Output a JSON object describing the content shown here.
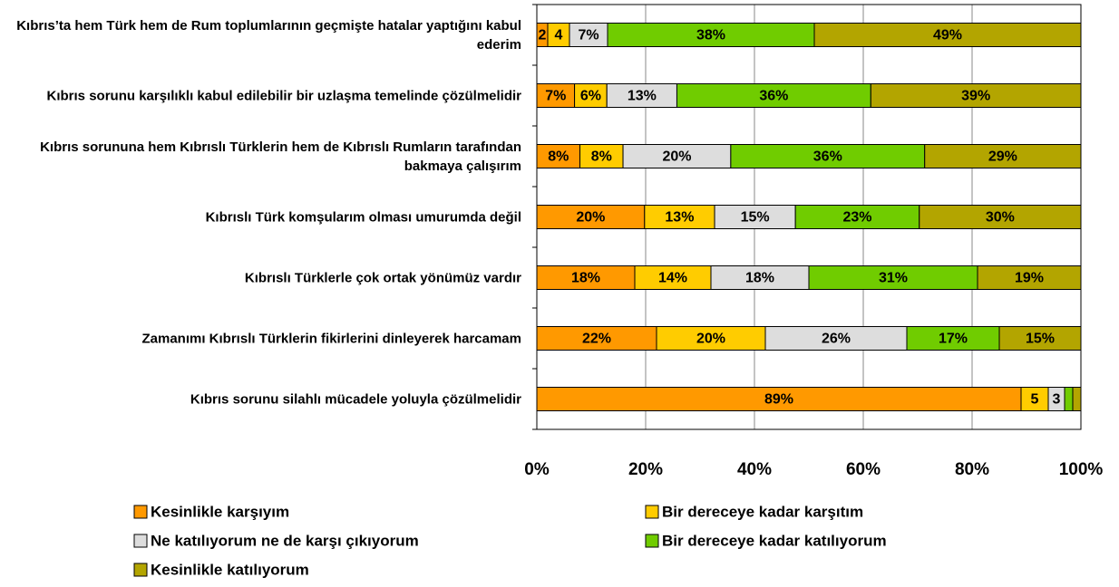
{
  "chart_data": {
    "type": "bar",
    "orientation": "horizontal",
    "stack": "percent",
    "categories": [
      "Kıbrıs’ta hem Türk  hem de Rum toplumlarının geçmişte hatalar yaptığını kabul ederim",
      "Kıbrıs sorunu karşılıklı kabul edilebilir bir uzlaşma temelinde çözülmelidir",
      "Kıbrıs sorununa hem Kıbrıslı Türklerin hem de Kıbrıslı Rumların tarafından bakmaya çalışırım",
      "Kıbrıslı Türk komşularım olması umurumda değil",
      "Kıbrıslı Türklerle çok ortak yönümüz vardır",
      "Zamanımı Kıbrıslı Türklerin fikirlerini dinleyerek harcamam",
      "Kıbrıs sorunu silahlı mücadele yoluyla çözülmelidir"
    ],
    "series": [
      {
        "name": "Kesinlikle karşıyım",
        "color": "#ff9900",
        "values": [
          2,
          7,
          8,
          20,
          18,
          22,
          89
        ],
        "value_labels": [
          "2",
          "7%",
          "8%",
          "20%",
          "18%",
          "22%",
          "89%"
        ]
      },
      {
        "name": "Bir dereceye kadar karşıtım",
        "color": "#ffcc00",
        "values": [
          4,
          6,
          8,
          13,
          14,
          20,
          5
        ],
        "value_labels": [
          "4",
          "6%",
          "8%",
          "13%",
          "14%",
          "20%",
          "5"
        ]
      },
      {
        "name": "Ne katılıyorum ne de karşı çıkıyorum",
        "color": "#dddddd",
        "values": [
          7,
          13,
          20,
          15,
          18,
          26,
          3
        ],
        "value_labels": [
          "7%",
          "13%",
          "20%",
          "15%",
          "18%",
          "26%",
          "3"
        ]
      },
      {
        "name": "Bir dereceye kadar katılıyorum",
        "color": "#70cc00",
        "values": [
          38,
          36,
          36,
          23,
          31,
          17,
          1.5
        ],
        "value_labels": [
          "38%",
          "36%",
          "36%",
          "23%",
          "31%",
          "17%",
          null
        ]
      },
      {
        "name": "Kesinlikle katılıyorum",
        "color": "#b3a500",
        "values": [
          49,
          39,
          29,
          30,
          19,
          15,
          1.5
        ],
        "value_labels": [
          "49%",
          "39%",
          "29%",
          "30%",
          "19%",
          "15%",
          null
        ]
      }
    ],
    "xlim": [
      0,
      100
    ],
    "xticks": [
      {
        "value": 0,
        "label": "0%"
      },
      {
        "value": 20,
        "label": "20%"
      },
      {
        "value": 40,
        "label": "40%"
      },
      {
        "value": 60,
        "label": "60%"
      },
      {
        "value": 80,
        "label": "80%"
      },
      {
        "value": 100,
        "label": "100%"
      }
    ],
    "grid": true
  }
}
